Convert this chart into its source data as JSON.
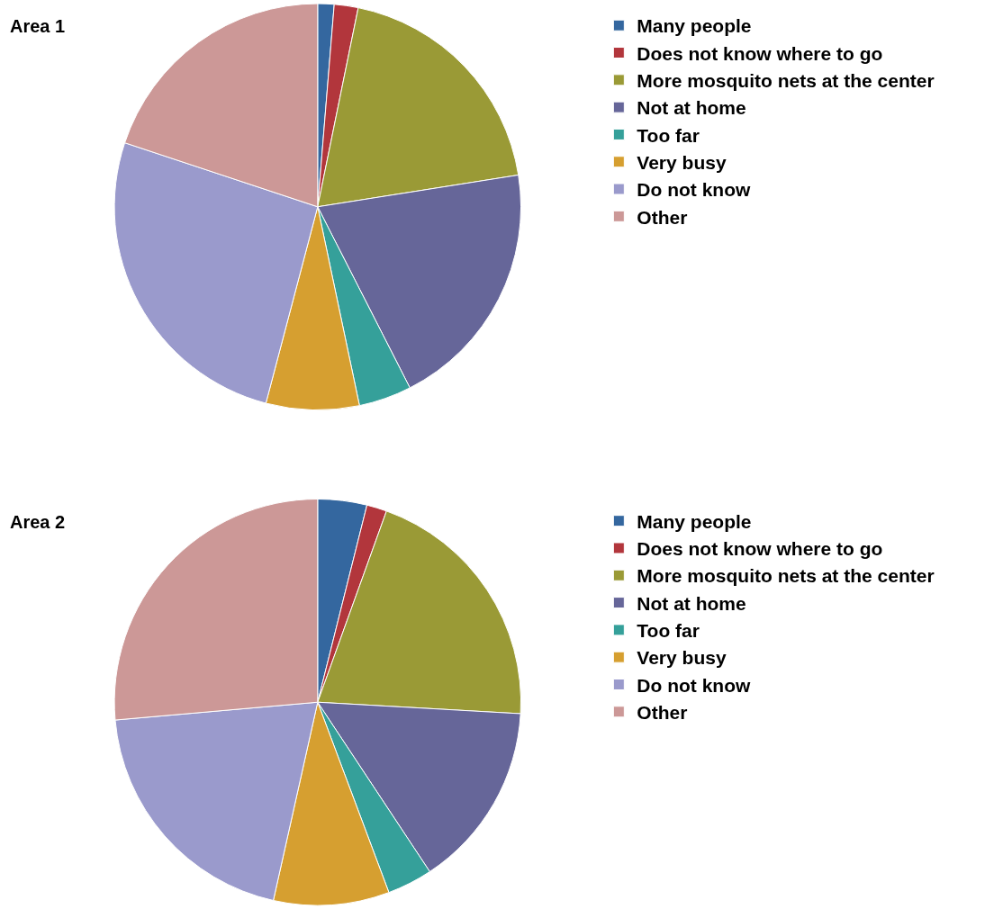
{
  "chart_data": [
    {
      "type": "pie",
      "title": "Area 1",
      "categories": [
        "Many people",
        "Does not know where to go",
        "More mosquito nets at the center",
        "Not at home",
        "Too far",
        "Very busy",
        "Do not know",
        "Other"
      ],
      "values": [
        1.3,
        1.9,
        19.3,
        20.0,
        4.2,
        7.4,
        26.0,
        19.9
      ],
      "colors": [
        "#34679f",
        "#b2363c",
        "#9a9a36",
        "#666699",
        "#35a09a",
        "#d69f30",
        "#9a9acc",
        "#cc9897"
      ],
      "legend": "right"
    },
    {
      "type": "pie",
      "title": "Area 2",
      "categories": [
        "Many people",
        "Does not know where to go",
        "More mosquito nets at the center",
        "Not at home",
        "Too far",
        "Very busy",
        "Do not know",
        "Other"
      ],
      "values": [
        3.9,
        1.6,
        20.4,
        14.8,
        3.6,
        9.2,
        20.1,
        26.4
      ],
      "colors": [
        "#34679f",
        "#b2363c",
        "#9a9a36",
        "#666699",
        "#35a09a",
        "#d69f30",
        "#9a9acc",
        "#cc9897"
      ],
      "legend": "right"
    }
  ]
}
